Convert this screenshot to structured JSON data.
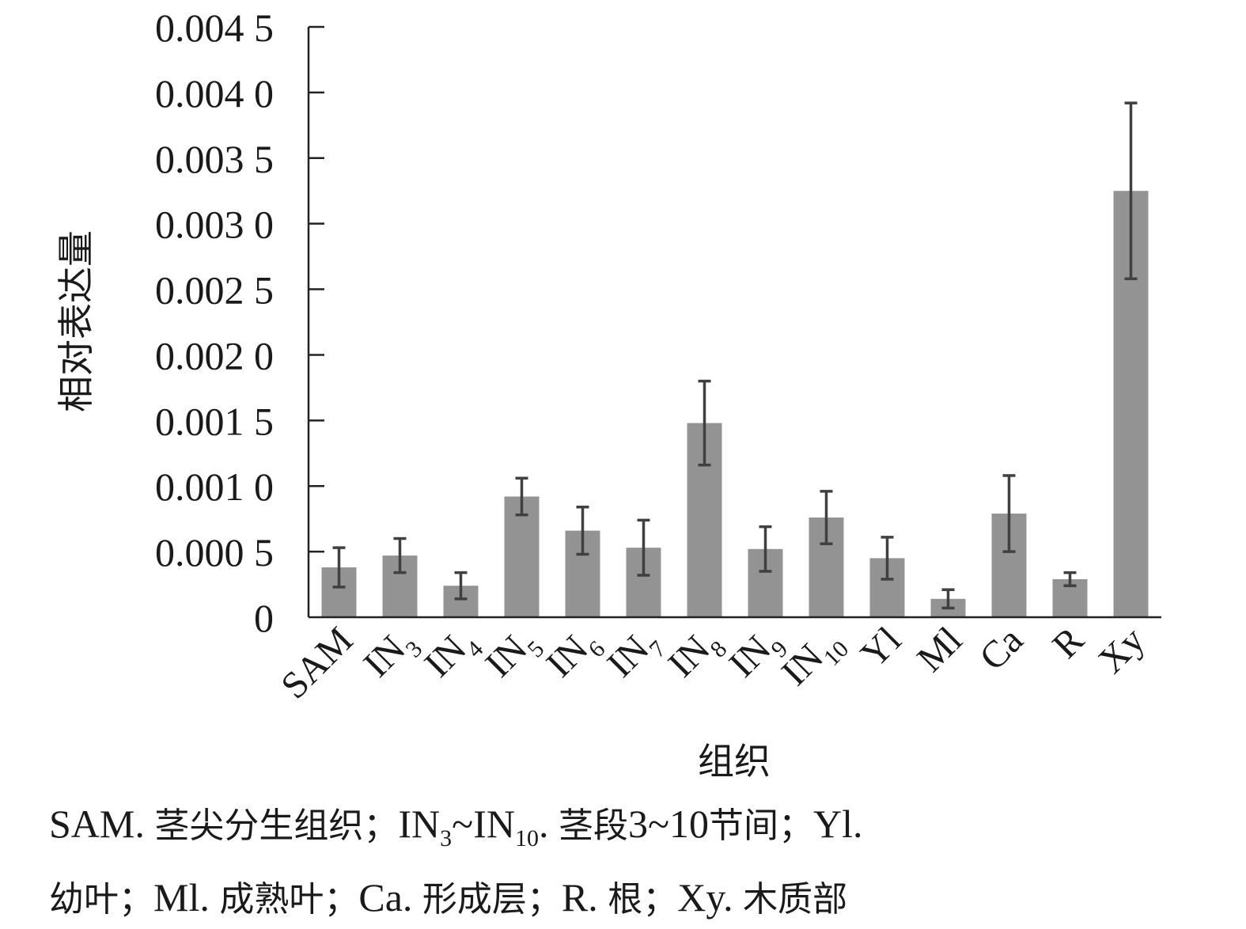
{
  "chart_data": {
    "type": "bar",
    "ylabel": "相对表达量",
    "xlabel": "组织",
    "ylim": [
      0,
      0.0045
    ],
    "yticks": [
      "0",
      "0.000 5",
      "0.001 0",
      "0.001 5",
      "0.002 0",
      "0.002 5",
      "0.003 0",
      "0.003 5",
      "0.004 0",
      "0.004 5"
    ],
    "ytick_values": [
      0,
      0.0005,
      0.001,
      0.0015,
      0.002,
      0.0025,
      0.003,
      0.0035,
      0.004,
      0.0045
    ],
    "categories": [
      {
        "main": "SAM",
        "sub": ""
      },
      {
        "main": "IN",
        "sub": "3"
      },
      {
        "main": "IN",
        "sub": "4"
      },
      {
        "main": "IN",
        "sub": "5"
      },
      {
        "main": "IN",
        "sub": "6"
      },
      {
        "main": "IN",
        "sub": "7"
      },
      {
        "main": "IN",
        "sub": "8"
      },
      {
        "main": "IN",
        "sub": "9"
      },
      {
        "main": "IN",
        "sub": "10"
      },
      {
        "main": "Yl",
        "sub": ""
      },
      {
        "main": "Ml",
        "sub": ""
      },
      {
        "main": "Ca",
        "sub": ""
      },
      {
        "main": "R",
        "sub": ""
      },
      {
        "main": "Xy",
        "sub": ""
      }
    ],
    "values": [
      0.00038,
      0.00047,
      0.00024,
      0.00092,
      0.00066,
      0.00053,
      0.00148,
      0.00052,
      0.00076,
      0.00045,
      0.00014,
      0.00079,
      0.00029,
      0.00325
    ],
    "errors": [
      0.00015,
      0.00013,
      0.0001,
      0.00014,
      0.00018,
      0.00021,
      0.00032,
      0.00017,
      0.0002,
      0.00016,
      7e-05,
      0.00029,
      5e-05,
      0.00067
    ],
    "bar_color": "#939393",
    "error_color": "#404040",
    "grid": false,
    "legend": "none"
  },
  "caption": {
    "line1": [
      {
        "t": "SAM. ",
        "zh": false
      },
      {
        "t": "茎尖分生组织；",
        "zh": true
      },
      {
        "t": "IN",
        "zh": false
      },
      {
        "t": "3",
        "zh": false,
        "sub": true
      },
      {
        "t": "~IN",
        "zh": false
      },
      {
        "t": "10",
        "zh": false,
        "sub": true
      },
      {
        "t": ". ",
        "zh": false
      },
      {
        "t": "茎段",
        "zh": true
      },
      {
        "t": "3~10",
        "zh": false
      },
      {
        "t": "节间；",
        "zh": true
      },
      {
        "t": "Yl.",
        "zh": false
      }
    ],
    "line2": [
      {
        "t": "幼叶；",
        "zh": true
      },
      {
        "t": "Ml. ",
        "zh": false
      },
      {
        "t": "成熟叶；",
        "zh": true
      },
      {
        "t": "Ca. ",
        "zh": false
      },
      {
        "t": "形成层；",
        "zh": true
      },
      {
        "t": "R. ",
        "zh": false
      },
      {
        "t": "根；",
        "zh": true
      },
      {
        "t": "Xy. ",
        "zh": false
      },
      {
        "t": "木质部",
        "zh": true
      }
    ]
  }
}
